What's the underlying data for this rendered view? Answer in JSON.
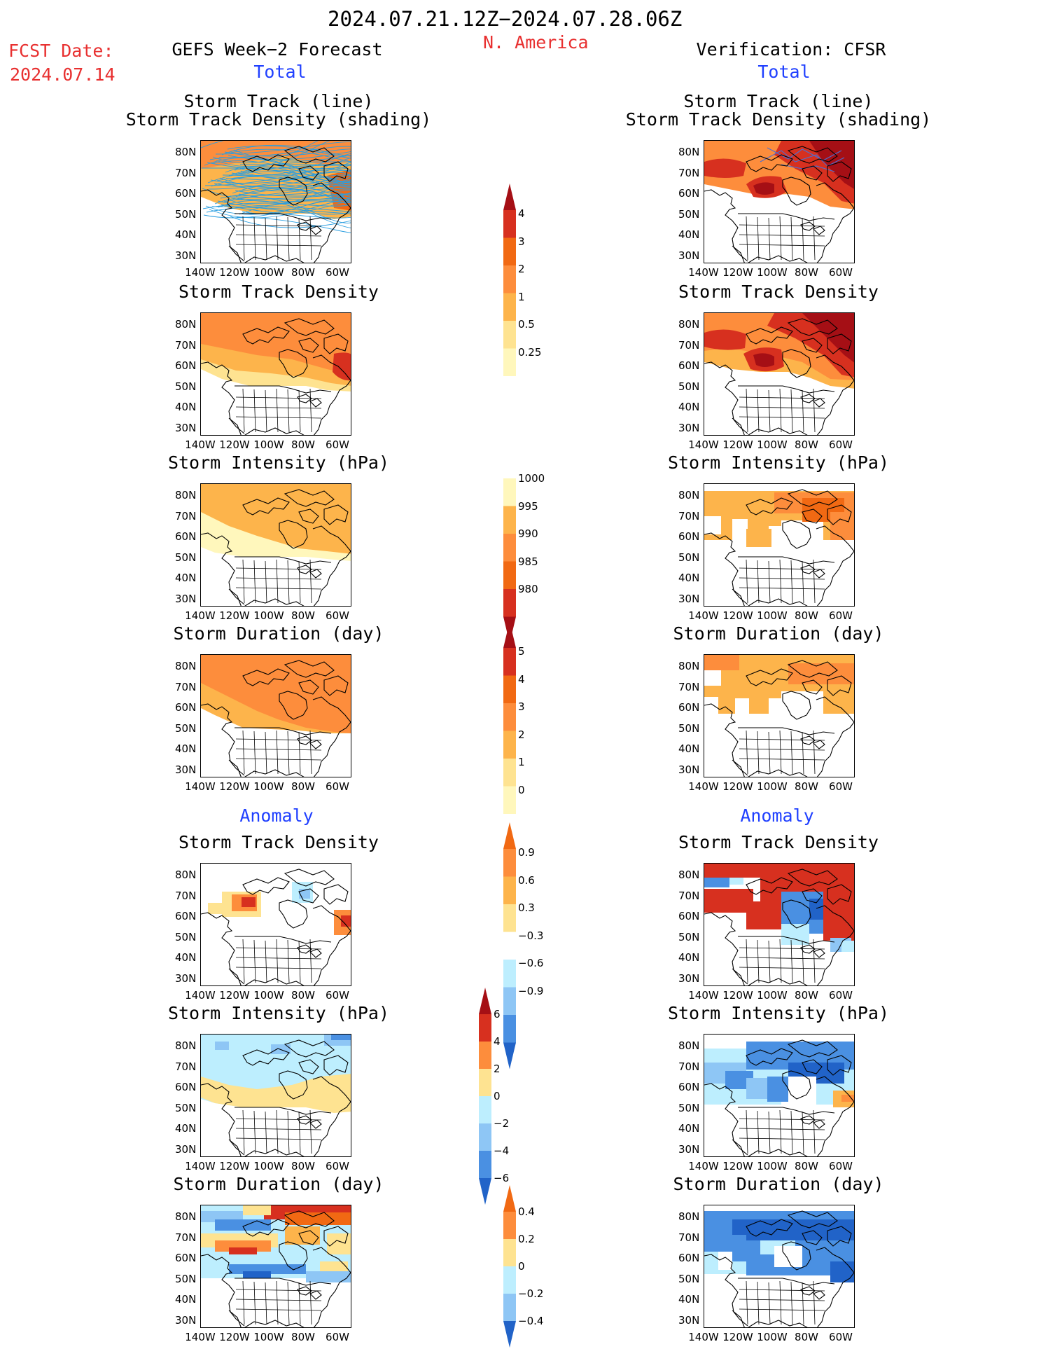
{
  "header": {
    "date_range": "2024.07.21.12Z−2024.07.28.06Z",
    "region": "N. America",
    "fcst_label": "FCST Date:",
    "fcst_date": "2024.07.14",
    "left_title": "GEFS Week−2 Forecast",
    "right_title": "Verification: CFSR",
    "total_label": "Total",
    "anomaly_label": "Anomaly"
  },
  "panel_titles": {
    "track_line": "Storm Track (line)",
    "track_shading": "Storm Track Density (shading)",
    "density": "Storm Track Density",
    "intensity": "Storm Intensity (hPa)",
    "duration": "Storm Duration (day)"
  },
  "axes": {
    "lat_labels": [
      "80N",
      "70N",
      "60N",
      "50N",
      "40N",
      "30N"
    ],
    "lon_labels": [
      "140W",
      "120W",
      "100W",
      "80W",
      "60W"
    ]
  },
  "colorbars": {
    "density_total": [
      "4",
      "3",
      "2",
      "1",
      "0.5",
      "0.25"
    ],
    "intensity_total": [
      "1000",
      "995",
      "990",
      "985",
      "980"
    ],
    "duration_total": [
      "5",
      "4",
      "3",
      "2",
      "1",
      "0"
    ],
    "density_anom": [
      "0.9",
      "0.6",
      "0.3",
      "−0.3",
      "−0.6",
      "−0.9"
    ],
    "intensity_anom": [
      "6",
      "4",
      "2",
      "0",
      "−2",
      "−4",
      "−6"
    ],
    "duration_anom": [
      "0.4",
      "0.2",
      "0",
      "−0.2",
      "−0.4"
    ]
  },
  "colors": {
    "dark_red": "#a50f15",
    "red": "#d7301f",
    "orange_red": "#f16913",
    "orange": "#fd8d3c",
    "light_orange": "#fdb44b",
    "yellow": "#fee391",
    "pale_yellow": "#fff7bc",
    "light_blue": "#bdeefe",
    "mid_blue": "#8ec6f5",
    "blue": "#4a90e2",
    "dark_blue": "#2163c8",
    "track_line_left": "#2a9ee0",
    "track_line_right": "#4a6fd6"
  }
}
